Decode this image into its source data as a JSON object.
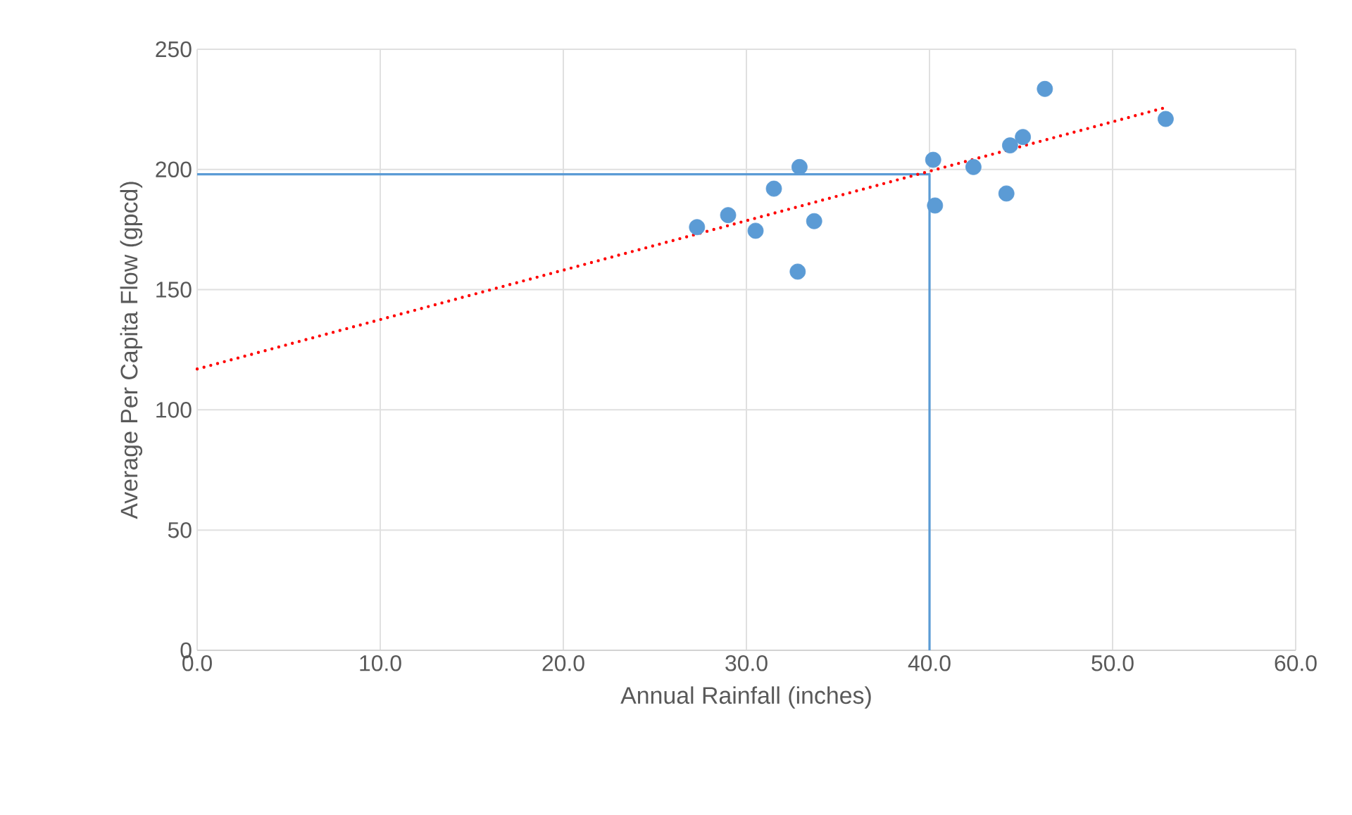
{
  "chart_data": {
    "type": "scatter",
    "xlabel": "Annual Rainfall (inches)",
    "ylabel": "Average Per Capita Flow (gpcd)",
    "xlim": [
      0,
      60
    ],
    "ylim": [
      0,
      250
    ],
    "xticks": [
      {
        "value": 0,
        "label": "0.0"
      },
      {
        "value": 10,
        "label": "10.0"
      },
      {
        "value": 20,
        "label": "20.0"
      },
      {
        "value": 30,
        "label": "30.0"
      },
      {
        "value": 40,
        "label": "40.0"
      },
      {
        "value": 50,
        "label": "50.0"
      },
      {
        "value": 60,
        "label": "60.0"
      }
    ],
    "yticks": [
      0,
      50,
      100,
      150,
      200,
      250
    ],
    "grid": true,
    "series": [
      {
        "type": "line",
        "color": "#5b9bd5",
        "line_style": "solid",
        "marker": "none",
        "x": [
          0,
          40,
          40
        ],
        "values": [
          198,
          198,
          0
        ]
      },
      {
        "color": "#5b9bd5",
        "marker": "circle",
        "x": [
          27.3,
          29.0,
          30.5,
          31.5,
          32.9,
          32.8,
          33.7,
          40.2,
          40.3,
          42.4,
          44.2,
          44.4,
          45.1,
          46.3,
          52.9
        ],
        "values": [
          176,
          181,
          174.5,
          192,
          201,
          157.5,
          178.5,
          204,
          185,
          201,
          190,
          210,
          213.5,
          233.5,
          221
        ]
      },
      {
        "type": "line",
        "color": "#ff0000",
        "line_style": "dotted",
        "marker": "none",
        "x": [
          0,
          53
        ],
        "values": [
          117,
          226
        ]
      }
    ]
  }
}
